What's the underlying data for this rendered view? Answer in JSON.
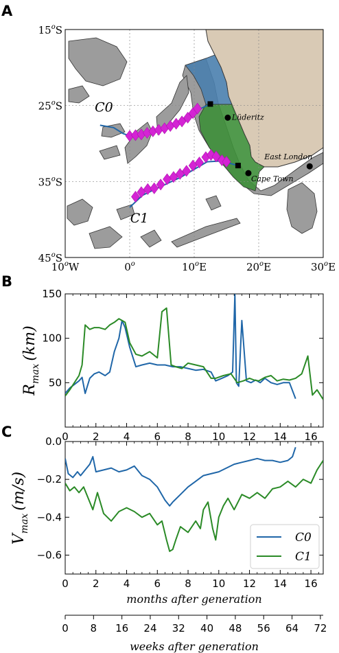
{
  "panels": {
    "A": "A",
    "B": "B",
    "C": "C"
  },
  "chart_data": [
    {
      "type": "map",
      "panel": "A",
      "lat_ticks": [
        "15",
        "25",
        "35",
        "45"
      ],
      "lat_suffix": "S",
      "lon_ticks": [
        {
          "lon": -10,
          "num": "10",
          "suffix": "W"
        },
        {
          "lon": 0,
          "num": "0",
          "suffix": ""
        },
        {
          "lon": 10,
          "num": "10",
          "suffix": "E"
        },
        {
          "lon": 20,
          "num": "20",
          "suffix": "E"
        },
        {
          "lon": 30,
          "num": "30",
          "suffix": "E"
        }
      ],
      "lon_range": [
        -10,
        30
      ],
      "lat_range": [
        -45,
        -15
      ],
      "places": [
        {
          "name": "Lüderitz",
          "lon": 15.2,
          "lat": -26.6
        },
        {
          "name": "Cape Town",
          "lon": 18.4,
          "lat": -33.9
        },
        {
          "name": "East London",
          "lon": 27.9,
          "lat": -33.0
        }
      ],
      "track_labels": {
        "c0": "C0",
        "c1": "C1"
      },
      "c0_track": [
        [
          -4.6,
          -27.6
        ],
        [
          -2.5,
          -27.9
        ],
        [
          -1.0,
          -28.7
        ],
        [
          0,
          -29.0
        ],
        [
          2,
          -28.8
        ],
        [
          4,
          -28.3
        ],
        [
          6,
          -27.8
        ],
        [
          8,
          -27.0
        ],
        [
          10,
          -26.0
        ],
        [
          11,
          -25.4
        ],
        [
          12.5,
          -24.8
        ]
      ],
      "c0_diamonds": [
        [
          0,
          -29.0
        ],
        [
          0.9,
          -28.9
        ],
        [
          1.8,
          -28.8
        ],
        [
          2.7,
          -28.6
        ],
        [
          3.6,
          -28.4
        ],
        [
          4.5,
          -28.2
        ],
        [
          5.4,
          -28.0
        ],
        [
          6.3,
          -27.7
        ],
        [
          7.2,
          -27.4
        ],
        [
          8.1,
          -27.1
        ],
        [
          9.0,
          -26.6
        ],
        [
          9.8,
          -26.0
        ],
        [
          10.5,
          -25.4
        ]
      ],
      "c1_track": [
        [
          0,
          -38.4
        ],
        [
          2,
          -36.8
        ],
        [
          4,
          -36.0
        ],
        [
          6,
          -35.2
        ],
        [
          8,
          -34.4
        ],
        [
          10,
          -33.4
        ],
        [
          12,
          -32.4
        ],
        [
          14,
          -32.3
        ],
        [
          15.5,
          -32.6
        ],
        [
          16.8,
          -32.9
        ]
      ],
      "c1_diamonds": [
        [
          0.9,
          -37.0
        ],
        [
          1.8,
          -36.4
        ],
        [
          2.8,
          -36.0
        ],
        [
          3.8,
          -35.9
        ],
        [
          4.8,
          -35.4
        ],
        [
          5.8,
          -34.7
        ],
        [
          6.8,
          -34.4
        ],
        [
          7.8,
          -34.0
        ],
        [
          8.8,
          -33.6
        ],
        [
          9.8,
          -32.9
        ],
        [
          10.8,
          -32.5
        ],
        [
          11.8,
          -31.8
        ],
        [
          12.6,
          -31.5
        ],
        [
          13.4,
          -31.7
        ],
        [
          14.3,
          -32.2
        ],
        [
          15.0,
          -32.4
        ]
      ]
    },
    {
      "type": "line",
      "panel": "B",
      "ylabel_main": "R",
      "ylabel_sub": "max",
      "ylabel_unit": "(km)",
      "xlim": [
        0,
        16.8
      ],
      "ylim": [
        0,
        150
      ],
      "xticks": [
        0,
        2,
        4,
        6,
        8,
        10,
        12,
        14,
        16
      ],
      "yticks": [
        50,
        100,
        150
      ],
      "series": [
        {
          "name": "C0",
          "color": "#1f66a8",
          "x": [
            0,
            0.3,
            0.6,
            0.9,
            1.1,
            1.3,
            1.6,
            1.9,
            2.2,
            2.6,
            2.9,
            3.2,
            3.5,
            3.7,
            3.9,
            4.2,
            4.6,
            5.0,
            5.5,
            6.0,
            6.5,
            7.0,
            7.5,
            8.0,
            8.5,
            9.0,
            9.5,
            9.8,
            10.2,
            10.6,
            10.9,
            11.05,
            11.15,
            11.3,
            11.5,
            11.8,
            12.1,
            12.4,
            12.7,
            13.0,
            13.4,
            13.8,
            14.2,
            14.6,
            15.0
          ],
          "y": [
            38,
            44,
            48,
            52,
            56,
            38,
            55,
            60,
            62,
            58,
            62,
            85,
            100,
            120,
            112,
            90,
            68,
            70,
            72,
            70,
            70,
            68,
            68,
            66,
            64,
            65,
            62,
            52,
            55,
            58,
            62,
            150,
            50,
            46,
            120,
            52,
            50,
            53,
            50,
            55,
            50,
            48,
            50,
            50,
            32
          ]
        },
        {
          "name": "C1",
          "color": "#2a8a26",
          "x": [
            0,
            0.3,
            0.6,
            0.9,
            1.1,
            1.3,
            1.6,
            1.9,
            2.2,
            2.6,
            2.9,
            3.2,
            3.5,
            3.7,
            3.9,
            4.2,
            4.6,
            5.0,
            5.5,
            6.0,
            6.3,
            6.6,
            6.9,
            7.2,
            7.6,
            8.0,
            8.5,
            9.0,
            9.5,
            9.8,
            10.3,
            10.8,
            11.2,
            11.6,
            12.0,
            12.3,
            12.6,
            13.0,
            13.4,
            13.8,
            14.2,
            14.6,
            15.0,
            15.4,
            15.8,
            16.1,
            16.4,
            16.8
          ],
          "y": [
            35,
            42,
            50,
            58,
            70,
            115,
            110,
            112,
            112,
            110,
            115,
            118,
            122,
            120,
            118,
            95,
            82,
            80,
            85,
            78,
            130,
            134,
            70,
            68,
            66,
            72,
            70,
            68,
            55,
            55,
            58,
            60,
            50,
            52,
            55,
            53,
            52,
            56,
            58,
            52,
            54,
            53,
            55,
            60,
            80,
            36,
            42,
            31
          ]
        }
      ]
    },
    {
      "type": "line",
      "panel": "C",
      "ylabel_main": "V",
      "ylabel_sub": "max",
      "ylabel_unit": "(m/s)",
      "xlabel": "months after generation",
      "xlabel2": "weeks after generation",
      "xlim": [
        0,
        16.8
      ],
      "ylim": [
        -0.7,
        0.0
      ],
      "xticks": [
        0,
        2,
        4,
        6,
        8,
        10,
        12,
        14,
        16
      ],
      "yticks": [
        0.0,
        -0.2,
        -0.4,
        -0.6
      ],
      "ytick_labels": [
        "0.0",
        "−0.2",
        "−0.4",
        "−0.6"
      ],
      "weeks_xlim": [
        0,
        72.8
      ],
      "weeks_ticks": [
        0,
        8,
        16,
        24,
        32,
        40,
        48,
        56,
        64,
        72
      ],
      "legend": [
        "C0",
        "C1"
      ],
      "series": [
        {
          "name": "C0",
          "color": "#1f66a8",
          "x": [
            0,
            0.2,
            0.5,
            0.8,
            1.0,
            1.3,
            1.6,
            1.8,
            2.0,
            2.5,
            3.0,
            3.5,
            4.0,
            4.5,
            5.0,
            5.5,
            6.0,
            6.5,
            6.8,
            7.0,
            7.5,
            8.0,
            8.5,
            9.0,
            9.5,
            10.0,
            10.5,
            11.0,
            11.5,
            12.0,
            12.5,
            13.0,
            13.5,
            14.0,
            14.5,
            14.8,
            15.0
          ],
          "y": [
            -0.09,
            -0.17,
            -0.19,
            -0.16,
            -0.18,
            -0.15,
            -0.12,
            -0.08,
            -0.16,
            -0.15,
            -0.14,
            -0.16,
            -0.15,
            -0.13,
            -0.18,
            -0.2,
            -0.24,
            -0.31,
            -0.34,
            -0.32,
            -0.28,
            -0.24,
            -0.21,
            -0.18,
            -0.17,
            -0.16,
            -0.14,
            -0.12,
            -0.11,
            -0.1,
            -0.09,
            -0.1,
            -0.1,
            -0.11,
            -0.1,
            -0.08,
            -0.03
          ]
        },
        {
          "name": "C1",
          "color": "#2a8a26",
          "x": [
            0,
            0.3,
            0.6,
            0.9,
            1.2,
            1.5,
            1.8,
            2.1,
            2.5,
            3.0,
            3.5,
            4.0,
            4.5,
            5.0,
            5.5,
            6.0,
            6.3,
            6.6,
            6.8,
            7.0,
            7.2,
            7.5,
            8.0,
            8.5,
            8.8,
            9.0,
            9.3,
            9.6,
            9.8,
            10.0,
            10.3,
            10.6,
            11.0,
            11.5,
            12.0,
            12.5,
            13.0,
            13.5,
            14.0,
            14.5,
            15.0,
            15.5,
            16.0,
            16.4,
            16.8
          ],
          "y": [
            -0.22,
            -0.26,
            -0.24,
            -0.27,
            -0.24,
            -0.3,
            -0.36,
            -0.27,
            -0.38,
            -0.42,
            -0.37,
            -0.35,
            -0.37,
            -0.4,
            -0.38,
            -0.44,
            -0.42,
            -0.52,
            -0.58,
            -0.57,
            -0.52,
            -0.45,
            -0.48,
            -0.42,
            -0.46,
            -0.36,
            -0.32,
            -0.46,
            -0.52,
            -0.4,
            -0.34,
            -0.3,
            -0.36,
            -0.28,
            -0.3,
            -0.27,
            -0.3,
            -0.25,
            -0.24,
            -0.21,
            -0.24,
            -0.2,
            -0.22,
            -0.15,
            -0.1
          ]
        }
      ]
    }
  ]
}
